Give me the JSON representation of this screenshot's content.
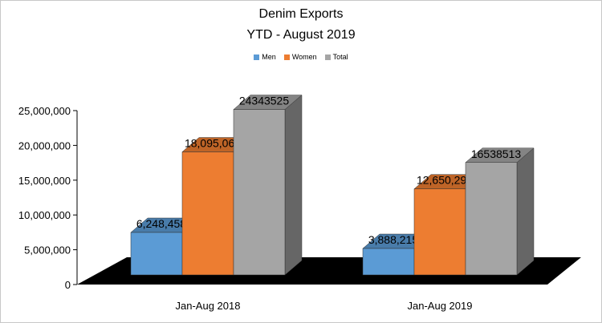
{
  "chart_data": {
    "type": "bar",
    "title": "Denim Exports",
    "subtitle": "YTD - August 2019",
    "categories": [
      "Jan-Aug 2018",
      "Jan-Aug 2019"
    ],
    "series": [
      {
        "name": "Men",
        "color": "#5b9bd5",
        "values": [
          6248458,
          3888215
        ],
        "labels": [
          "6,248,458",
          "3,888,215"
        ]
      },
      {
        "name": "Women",
        "color": "#ed7d31",
        "values": [
          18095067,
          12650298
        ],
        "labels": [
          "18,095,067",
          "12,650,298"
        ]
      },
      {
        "name": "Total",
        "color": "#a5a5a5",
        "values": [
          24343525,
          16538513
        ],
        "labels": [
          "24343525",
          "16538513"
        ]
      }
    ],
    "ylim": [
      0,
      25000000
    ],
    "yticks": [
      {
        "value": 0,
        "label": "0"
      },
      {
        "value": 5000000,
        "label": "5,000,000"
      },
      {
        "value": 10000000,
        "label": "10,000,000"
      },
      {
        "value": 15000000,
        "label": "15,000,000"
      },
      {
        "value": 20000000,
        "label": "20,000,000"
      },
      {
        "value": 25000000,
        "label": "25,000,000"
      }
    ],
    "grid": false,
    "legend": "top-center",
    "style": "3d-column"
  }
}
